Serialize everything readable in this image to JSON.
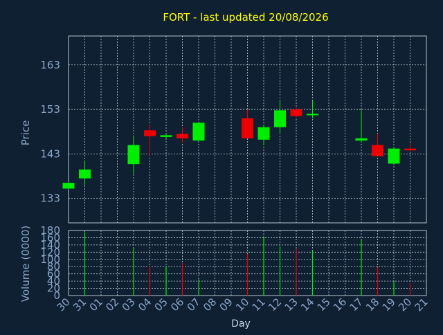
{
  "title": "FORT - last updated 20/08/2026",
  "colors": {
    "background": "#0f2033",
    "plot_border": "#b7c2cc",
    "grid": "#c8d0d8",
    "title": "#ffff00",
    "axis_text": "#8aa6c7",
    "up": "#00ee00",
    "down": "#ee0000"
  },
  "chart_data": [
    {
      "type": "candlestick",
      "ylabel": "Price",
      "ylim": [
        127.5,
        169.5
      ],
      "yticks": [
        133,
        143,
        153,
        163
      ],
      "grid": true,
      "categories": [
        "30",
        "31",
        "01",
        "02",
        "03",
        "04",
        "05",
        "06",
        "07",
        "08",
        "09",
        "10",
        "11",
        "12",
        "13",
        "14",
        "15",
        "16",
        "17",
        "18",
        "19",
        "20",
        "21"
      ],
      "candles": [
        {
          "x": "30",
          "open": 135.2,
          "high": 136.8,
          "low": 135.0,
          "close": 136.5
        },
        {
          "x": "31",
          "open": 137.5,
          "high": 141.5,
          "low": 136.0,
          "close": 139.5
        },
        {
          "x": "03",
          "open": 140.7,
          "high": 147.2,
          "low": 138.5,
          "close": 145.0
        },
        {
          "x": "04",
          "open": 148.3,
          "high": 149.5,
          "low": 142.5,
          "close": 147.0
        },
        {
          "x": "05",
          "open": 146.8,
          "high": 147.5,
          "low": 146.3,
          "close": 147.2
        },
        {
          "x": "06",
          "open": 147.5,
          "high": 149.0,
          "low": 145.5,
          "close": 146.5
        },
        {
          "x": "07",
          "open": 146.0,
          "high": 150.0,
          "low": 145.8,
          "close": 150.0
        },
        {
          "x": "10",
          "open": 151.0,
          "high": 153.0,
          "low": 146.5,
          "close": 146.5
        },
        {
          "x": "11",
          "open": 146.2,
          "high": 149.5,
          "low": 145.0,
          "close": 149.0
        },
        {
          "x": "12",
          "open": 149.0,
          "high": 155.0,
          "low": 147.5,
          "close": 152.8
        },
        {
          "x": "13",
          "open": 153.0,
          "high": 153.5,
          "low": 151.0,
          "close": 151.5
        },
        {
          "x": "14",
          "open": 152.0,
          "high": 155.0,
          "low": 151.0,
          "close": 152.0
        },
        {
          "x": "17",
          "open": 146.0,
          "high": 153.0,
          "low": 145.5,
          "close": 146.5
        },
        {
          "x": "18",
          "open": 145.0,
          "high": 147.5,
          "low": 142.5,
          "close": 142.5
        },
        {
          "x": "19",
          "open": 140.8,
          "high": 144.5,
          "low": 140.8,
          "close": 144.2
        },
        {
          "x": "20",
          "open": 144.2,
          "high": 145.5,
          "low": 143.5,
          "close": 143.8
        }
      ]
    },
    {
      "type": "bar",
      "ylabel": "Volume (0000)",
      "xlabel": "Day",
      "ylim": [
        0,
        180
      ],
      "yticks": [
        0,
        20,
        40,
        60,
        80,
        100,
        120,
        140,
        160,
        180
      ],
      "grid": true,
      "categories": [
        "30",
        "31",
        "01",
        "02",
        "03",
        "04",
        "05",
        "06",
        "07",
        "08",
        "09",
        "10",
        "11",
        "12",
        "13",
        "14",
        "15",
        "16",
        "17",
        "18",
        "19",
        "20",
        "21"
      ],
      "bars": [
        {
          "x": "31",
          "value": 175,
          "dir": "up"
        },
        {
          "x": "03",
          "value": 130,
          "dir": "up"
        },
        {
          "x": "04",
          "value": 82,
          "dir": "down"
        },
        {
          "x": "05",
          "value": 82,
          "dir": "up"
        },
        {
          "x": "06",
          "value": 90,
          "dir": "down"
        },
        {
          "x": "07",
          "value": 45,
          "dir": "up"
        },
        {
          "x": "10",
          "value": 115,
          "dir": "down"
        },
        {
          "x": "11",
          "value": 165,
          "dir": "up"
        },
        {
          "x": "12",
          "value": 135,
          "dir": "up"
        },
        {
          "x": "13",
          "value": 130,
          "dir": "down"
        },
        {
          "x": "14",
          "value": 125,
          "dir": "up"
        },
        {
          "x": "17",
          "value": 155,
          "dir": "up"
        },
        {
          "x": "18",
          "value": 78,
          "dir": "down"
        },
        {
          "x": "19",
          "value": 38,
          "dir": "up"
        },
        {
          "x": "20",
          "value": 35,
          "dir": "down"
        }
      ]
    }
  ]
}
